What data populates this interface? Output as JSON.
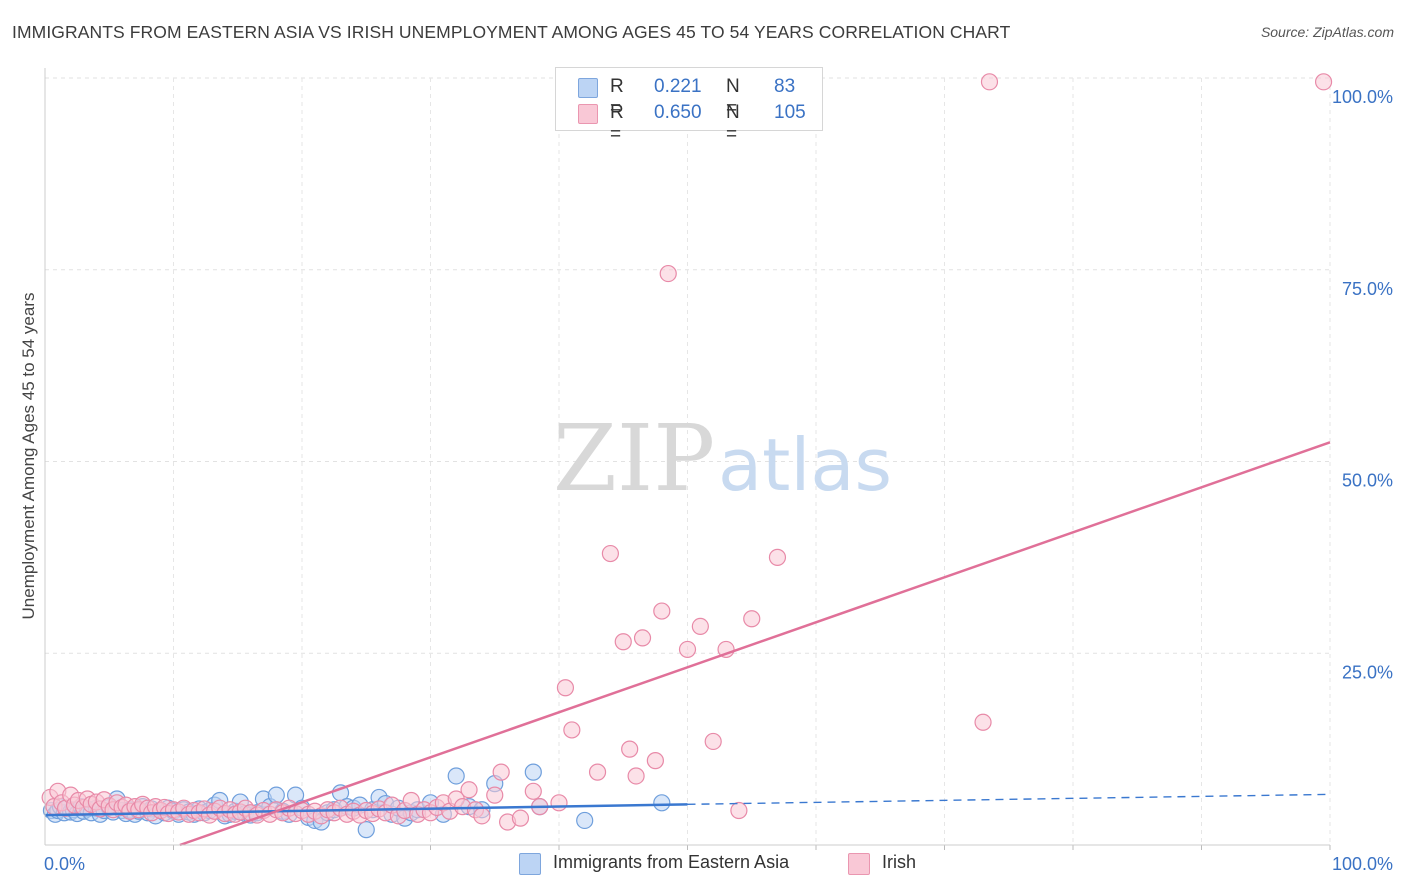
{
  "title": "IMMIGRANTS FROM EASTERN ASIA VS IRISH UNEMPLOYMENT AMONG AGES 45 TO 54 YEARS CORRELATION CHART",
  "source": "Source: ZipAtlas.com",
  "watermark": {
    "zip": "ZIP",
    "atlas": "atlas"
  },
  "legend": {
    "rows": [
      {
        "r_label": "R =",
        "r_value": "0.221",
        "n_label": "N =",
        "n_value": "83",
        "color": "#bcd4f4"
      },
      {
        "r_label": "R =",
        "r_value": "0.650",
        "n_label": "N =",
        "n_value": "105",
        "color": "#f9c8d6"
      }
    ]
  },
  "bottom_legend": [
    {
      "label": "Immigrants from Eastern Asia",
      "color": "#bcd4f4"
    },
    {
      "label": "Irish",
      "color": "#f9c8d6"
    }
  ],
  "chart_data": {
    "type": "scatter",
    "title": "IMMIGRANTS FROM EASTERN ASIA VS IRISH UNEMPLOYMENT AMONG AGES 45 TO 54 YEARS CORRELATION CHART",
    "xlabel": "",
    "ylabel": "Unemployment Among Ages 45 to 54 years",
    "xlim": [
      0,
      100
    ],
    "ylim": [
      0,
      100
    ],
    "x_tick_labels": {
      "0": "0.0%",
      "100": "100.0%"
    },
    "y_tick_labels": [
      {
        "value": 25,
        "label": "25.0%"
      },
      {
        "value": 50,
        "label": "50.0%"
      },
      {
        "value": 75,
        "label": "75.0%"
      },
      {
        "value": 100,
        "label": "100.0%"
      }
    ],
    "grid": true,
    "colors": {
      "blue_fill": "#bcd4f4",
      "blue_stroke": "#6f9fdc",
      "blue_line": "#3a78d0",
      "pink_fill": "#f9c8d6",
      "pink_stroke": "#e88aa8",
      "pink_line": "#e07098",
      "axis_label": "#3a72c4"
    },
    "series": [
      {
        "name": "Immigrants from Eastern Asia",
        "R": 0.221,
        "N": 83,
        "trend": {
          "x0": 0,
          "y0": 3.9,
          "x1": 50,
          "y1": 5.3,
          "dashed_to_x": 100,
          "dashed_to_y": 6.6
        },
        "points": [
          [
            0.5,
            4.5
          ],
          [
            0.8,
            4.0
          ],
          [
            1.0,
            4.5
          ],
          [
            1.2,
            5.0
          ],
          [
            1.5,
            4.2
          ],
          [
            1.7,
            4.8
          ],
          [
            2.0,
            4.3
          ],
          [
            2.2,
            4.6
          ],
          [
            2.5,
            4.1
          ],
          [
            2.8,
            5.0
          ],
          [
            3.0,
            4.4
          ],
          [
            3.3,
            4.7
          ],
          [
            3.6,
            4.2
          ],
          [
            4.0,
            4.8
          ],
          [
            4.3,
            4.0
          ],
          [
            4.6,
            4.5
          ],
          [
            5.0,
            4.9
          ],
          [
            5.3,
            4.3
          ],
          [
            5.6,
            6.0
          ],
          [
            6.0,
            4.5
          ],
          [
            6.3,
            4.1
          ],
          [
            6.6,
            4.6
          ],
          [
            7.0,
            4.0
          ],
          [
            7.3,
            4.4
          ],
          [
            7.6,
            5.0
          ],
          [
            8.0,
            4.2
          ],
          [
            8.3,
            4.7
          ],
          [
            8.6,
            3.8
          ],
          [
            9.0,
            4.5
          ],
          [
            9.3,
            4.2
          ],
          [
            9.6,
            4.8
          ],
          [
            10.0,
            4.4
          ],
          [
            10.4,
            4.0
          ],
          [
            10.8,
            4.6
          ],
          [
            11.2,
            4.3
          ],
          [
            11.6,
            4.0
          ],
          [
            12.0,
            4.7
          ],
          [
            12.4,
            4.2
          ],
          [
            12.8,
            4.5
          ],
          [
            13.2,
            5.2
          ],
          [
            13.6,
            5.8
          ],
          [
            14.0,
            3.8
          ],
          [
            14.4,
            4.0
          ],
          [
            14.8,
            4.4
          ],
          [
            15.2,
            5.6
          ],
          [
            15.6,
            4.1
          ],
          [
            16.0,
            3.9
          ],
          [
            16.5,
            4.2
          ],
          [
            17.0,
            6.0
          ],
          [
            17.5,
            5.0
          ],
          [
            18.0,
            6.5
          ],
          [
            18.5,
            4.4
          ],
          [
            19.0,
            4.0
          ],
          [
            19.5,
            6.5
          ],
          [
            20.0,
            4.8
          ],
          [
            20.5,
            3.6
          ],
          [
            21.0,
            3.2
          ],
          [
            21.5,
            3.0
          ],
          [
            22.0,
            4.2
          ],
          [
            22.5,
            4.6
          ],
          [
            23.0,
            6.8
          ],
          [
            23.5,
            5.0
          ],
          [
            24.0,
            4.8
          ],
          [
            24.5,
            5.2
          ],
          [
            25.0,
            2.0
          ],
          [
            25.5,
            4.6
          ],
          [
            26.0,
            6.2
          ],
          [
            26.5,
            5.4
          ],
          [
            27.0,
            4.0
          ],
          [
            27.5,
            4.8
          ],
          [
            28.0,
            3.5
          ],
          [
            28.5,
            4.2
          ],
          [
            29.0,
            4.6
          ],
          [
            30.0,
            5.5
          ],
          [
            31.0,
            4.0
          ],
          [
            32.0,
            9.0
          ],
          [
            33.0,
            5.0
          ],
          [
            34.0,
            4.6
          ],
          [
            35.0,
            8.0
          ],
          [
            38.0,
            9.5
          ],
          [
            38.5,
            5.0
          ],
          [
            42.0,
            3.2
          ],
          [
            48.0,
            5.5
          ]
        ]
      },
      {
        "name": "Irish",
        "R": 0.65,
        "N": 105,
        "trend": {
          "x0": 10.5,
          "y0": 0,
          "x1": 100,
          "y1": 52.5
        },
        "points": [
          [
            0.4,
            6.2
          ],
          [
            0.7,
            5.0
          ],
          [
            1.0,
            7.0
          ],
          [
            1.3,
            5.5
          ],
          [
            1.6,
            4.8
          ],
          [
            2.0,
            6.5
          ],
          [
            2.3,
            5.2
          ],
          [
            2.6,
            5.8
          ],
          [
            3.0,
            4.9
          ],
          [
            3.3,
            6.0
          ],
          [
            3.6,
            5.3
          ],
          [
            4.0,
            5.6
          ],
          [
            4.3,
            4.7
          ],
          [
            4.6,
            5.9
          ],
          [
            5.0,
            5.1
          ],
          [
            5.3,
            4.6
          ],
          [
            5.6,
            5.5
          ],
          [
            6.0,
            4.9
          ],
          [
            6.3,
            5.2
          ],
          [
            6.6,
            4.4
          ],
          [
            7.0,
            5.0
          ],
          [
            7.3,
            4.6
          ],
          [
            7.6,
            5.3
          ],
          [
            8.0,
            4.8
          ],
          [
            8.3,
            4.2
          ],
          [
            8.6,
            5.0
          ],
          [
            9.0,
            4.5
          ],
          [
            9.3,
            4.9
          ],
          [
            9.6,
            4.1
          ],
          [
            10.0,
            4.6
          ],
          [
            10.4,
            4.3
          ],
          [
            10.8,
            4.8
          ],
          [
            11.2,
            4.0
          ],
          [
            11.6,
            4.5
          ],
          [
            12.0,
            4.2
          ],
          [
            12.4,
            4.7
          ],
          [
            12.8,
            3.9
          ],
          [
            13.2,
            4.4
          ],
          [
            13.6,
            4.8
          ],
          [
            14.0,
            4.1
          ],
          [
            14.4,
            4.6
          ],
          [
            14.8,
            4.0
          ],
          [
            15.2,
            4.3
          ],
          [
            15.6,
            4.8
          ],
          [
            16.0,
            4.2
          ],
          [
            16.5,
            3.9
          ],
          [
            17.0,
            4.5
          ],
          [
            17.5,
            4.0
          ],
          [
            18.0,
            4.6
          ],
          [
            18.5,
            4.2
          ],
          [
            19.0,
            4.8
          ],
          [
            19.5,
            4.1
          ],
          [
            20.0,
            4.5
          ],
          [
            20.5,
            4.0
          ],
          [
            21.0,
            4.4
          ],
          [
            21.5,
            3.8
          ],
          [
            22.0,
            4.6
          ],
          [
            22.5,
            4.2
          ],
          [
            23.0,
            4.8
          ],
          [
            23.5,
            4.0
          ],
          [
            24.0,
            4.4
          ],
          [
            24.5,
            3.9
          ],
          [
            25.0,
            4.5
          ],
          [
            25.5,
            4.1
          ],
          [
            26.0,
            4.7
          ],
          [
            26.5,
            4.2
          ],
          [
            27.0,
            5.2
          ],
          [
            27.5,
            3.8
          ],
          [
            28.0,
            4.5
          ],
          [
            28.5,
            5.8
          ],
          [
            29.0,
            4.0
          ],
          [
            29.5,
            4.6
          ],
          [
            30.0,
            4.2
          ],
          [
            30.5,
            4.9
          ],
          [
            31.0,
            5.5
          ],
          [
            31.5,
            4.4
          ],
          [
            32.0,
            6.0
          ],
          [
            32.5,
            5.0
          ],
          [
            33.0,
            7.2
          ],
          [
            33.5,
            4.6
          ],
          [
            34.0,
            3.8
          ],
          [
            35.0,
            6.5
          ],
          [
            35.5,
            9.5
          ],
          [
            36.0,
            3.0
          ],
          [
            37.0,
            3.5
          ],
          [
            38.0,
            7.0
          ],
          [
            38.5,
            5.0
          ],
          [
            40.0,
            5.5
          ],
          [
            40.5,
            20.5
          ],
          [
            41.0,
            15.0
          ],
          [
            43.0,
            9.5
          ],
          [
            44.0,
            38.0
          ],
          [
            45.0,
            26.5
          ],
          [
            45.5,
            12.5
          ],
          [
            46.0,
            9.0
          ],
          [
            46.5,
            27.0
          ],
          [
            47.5,
            11.0
          ],
          [
            48.0,
            30.5
          ],
          [
            48.5,
            74.5
          ],
          [
            50.0,
            25.5
          ],
          [
            51.0,
            28.5
          ],
          [
            52.0,
            13.5
          ],
          [
            53.0,
            25.5
          ],
          [
            54.0,
            4.5
          ],
          [
            55.0,
            29.5
          ],
          [
            57.0,
            37.5
          ],
          [
            73.0,
            16.0
          ],
          [
            73.5,
            99.5
          ],
          [
            99.5,
            99.5
          ]
        ]
      }
    ]
  }
}
